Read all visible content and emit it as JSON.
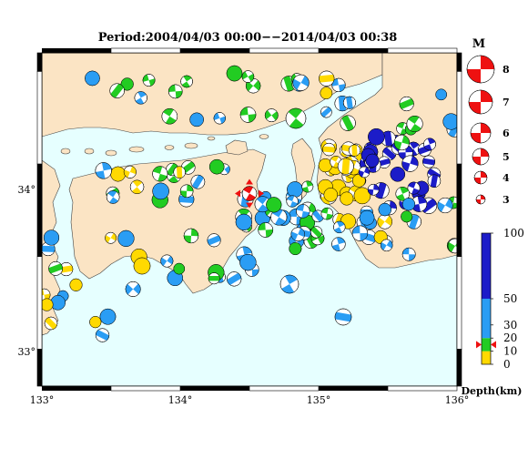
{
  "title": "Period:2004/04/03 00:00−−2014/04/03 00:38",
  "map": {
    "lon_range": [
      133,
      136
    ],
    "lat_range": [
      32.8,
      34.6
    ],
    "x_ticks": [
      "133°",
      "134°",
      "135°",
      "136°"
    ],
    "y_ticks": [
      "34°",
      "33°"
    ],
    "colors": {
      "sea": "#e6ffff",
      "land": "#fbe4c4",
      "coast": "#444444"
    }
  },
  "magnitude_legend": {
    "title": "M",
    "labels": [
      "8",
      "7",
      "6",
      "5",
      "4",
      "3"
    ],
    "color": "#ee1111"
  },
  "depth_scale": {
    "title": "Depth(km)",
    "tick_labels": [
      "100",
      "50",
      "30",
      "20",
      "10",
      "0"
    ],
    "colors": {
      "shallow": "#ffd900",
      "upper": "#22cc22",
      "middle": "#2a9df4",
      "deep": "#1c1cc8"
    },
    "marker_depth_km": 15,
    "marker_color": "#ee1111"
  },
  "main_event": {
    "lon": 134.5,
    "lat": 33.84,
    "depth_km": 15,
    "color": "#ee1111"
  },
  "icons": {
    "event": "focal-mechanism-beachball-icon",
    "marker": "red-triangle-marker-icon"
  }
}
